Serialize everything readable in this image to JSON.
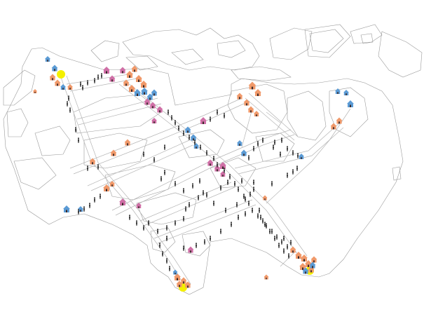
{
  "colors": {
    "background": "#ffffff",
    "outline": "#9a9a9a",
    "street": "#b5b5b5",
    "person": "#2a2a2a",
    "house_orange": "#f0996a",
    "house_blue": "#5b9bd5",
    "house_pink": "#cf6fa6",
    "highlight": "#f4f000"
  },
  "icons": {
    "building": "house-icon",
    "pedestrian": "person-icon",
    "hotspot": "yellow-circle-marker"
  },
  "legend": [],
  "labels": []
}
